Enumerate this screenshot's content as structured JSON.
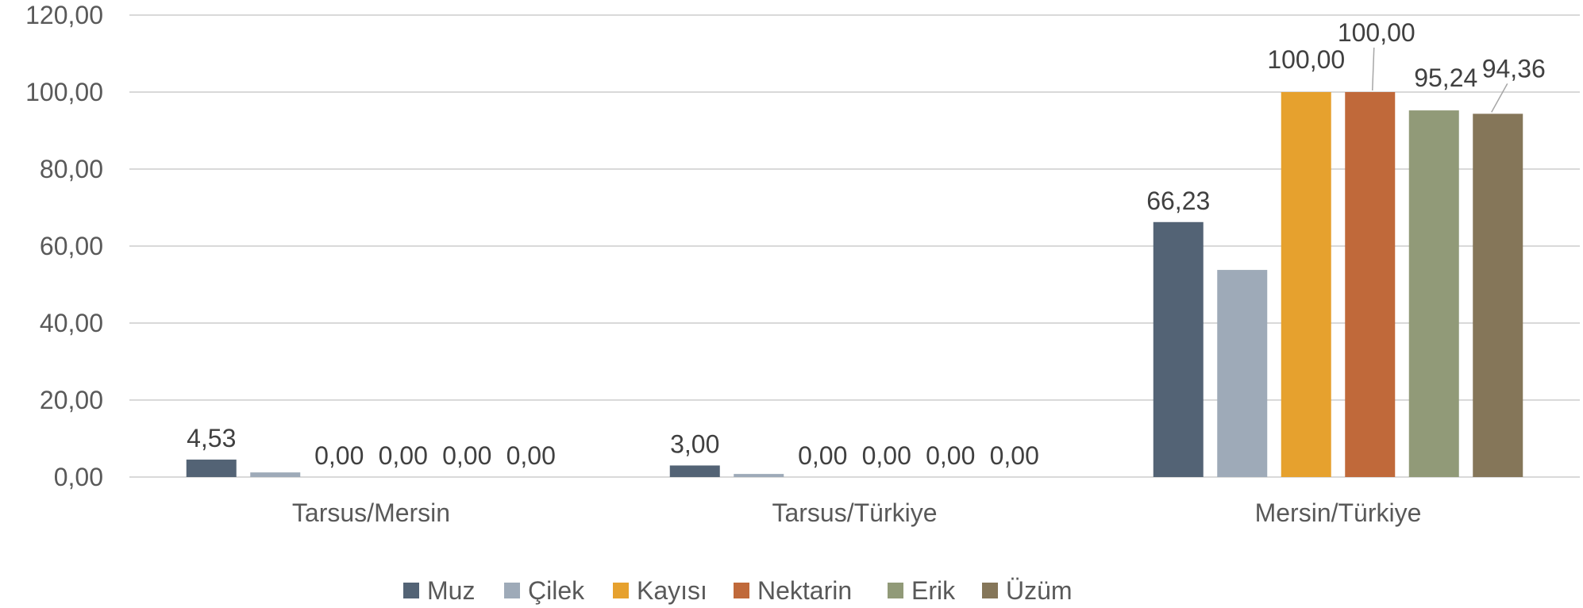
{
  "chart_data": {
    "type": "bar",
    "categories": [
      "Tarsus/Mersin",
      "Tarsus/Türkiye",
      "Mersin/Türkiye"
    ],
    "series": [
      {
        "name": "Muz",
        "color": "#536375",
        "values": [
          4.53,
          3.0,
          66.23
        ],
        "labels": [
          "4,53",
          "3,00",
          "66,23"
        ]
      },
      {
        "name": "Çilek",
        "color": "#9eaab8",
        "values": [
          1.2,
          0.8,
          53.8
        ],
        "labels": [
          "",
          "",
          ""
        ]
      },
      {
        "name": "Kayısı",
        "color": "#e6a12e",
        "values": [
          0.0,
          0.0,
          100.0
        ],
        "labels": [
          "0,00",
          "0,00",
          "100,00"
        ]
      },
      {
        "name": "Nektarin",
        "color": "#c0693a",
        "values": [
          0.0,
          0.0,
          100.0
        ],
        "labels": [
          "0,00",
          "0,00",
          "100,00"
        ]
      },
      {
        "name": "Erik",
        "color": "#919a78",
        "values": [
          0.0,
          0.0,
          95.24
        ],
        "labels": [
          "0,00",
          "0,00",
          "95,24"
        ]
      },
      {
        "name": "Üzüm",
        "color": "#857659",
        "values": [
          0.0,
          0.0,
          94.36
        ],
        "labels": [
          "0,00",
          "0,00",
          "94,36"
        ]
      }
    ],
    "yticks": [
      "0,00",
      "20,00",
      "40,00",
      "60,00",
      "80,00",
      "100,00",
      "120,00"
    ],
    "ylim": [
      0,
      120
    ],
    "title": "",
    "xlabel": "",
    "ylabel": "",
    "grid": true,
    "legend": "bottom"
  }
}
